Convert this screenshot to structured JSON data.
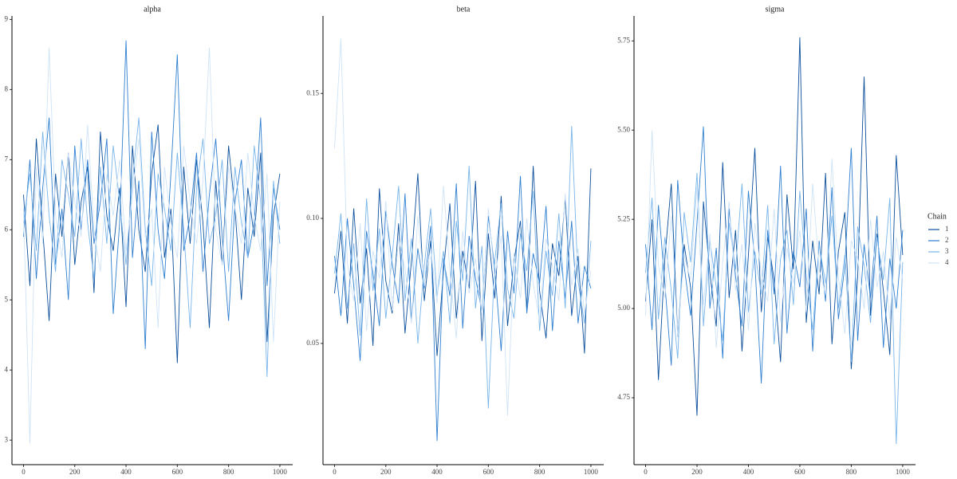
{
  "chart_data": [
    {
      "type": "line",
      "title": "alpha",
      "x": [
        0,
        25,
        50,
        75,
        100,
        125,
        150,
        175,
        200,
        225,
        250,
        275,
        300,
        325,
        350,
        375,
        400,
        425,
        450,
        475,
        500,
        525,
        550,
        575,
        600,
        625,
        650,
        675,
        700,
        725,
        750,
        775,
        800,
        825,
        850,
        875,
        900,
        925,
        950,
        975,
        1000
      ],
      "xlim": [
        -45,
        1050
      ],
      "xticks": [
        0,
        200,
        400,
        600,
        800,
        1000
      ],
      "ylim": [
        2.65,
        9.05
      ],
      "yticks": [
        3,
        4,
        5,
        6,
        7,
        8,
        9
      ],
      "series": [
        {
          "color": "#0b4f9c",
          "values": [
            6.5,
            5.2,
            7.3,
            6.0,
            4.7,
            6.8,
            5.9,
            7.1,
            5.5,
            6.4,
            6.9,
            5.1,
            7.4,
            6.2,
            5.7,
            6.6,
            4.9,
            7.2,
            6.0,
            5.4,
            6.8,
            7.5,
            5.6,
            6.3,
            4.1,
            6.9,
            5.8,
            7.0,
            6.1,
            4.6,
            6.7,
            5.5,
            7.2,
            6.3,
            5.0,
            6.6,
            5.9,
            7.1,
            4.4,
            6.2,
            6.8
          ]
        },
        {
          "color": "#2f7fd0",
          "values": [
            5.9,
            7.0,
            5.3,
            6.6,
            7.6,
            5.5,
            6.3,
            5.0,
            7.2,
            6.0,
            7.0,
            5.8,
            6.4,
            7.3,
            4.8,
            6.1,
            8.7,
            5.6,
            6.7,
            4.3,
            7.4,
            6.0,
            5.3,
            6.8,
            8.5,
            5.7,
            6.2,
            7.1,
            5.4,
            6.5,
            7.3,
            5.9,
            4.7,
            6.4,
            7.0,
            5.6,
            6.1,
            7.6,
            5.2,
            6.6,
            6.0
          ]
        },
        {
          "color": "#79b5ea",
          "values": [
            6.1,
            6.8,
            5.7,
            7.4,
            6.2,
            5.4,
            7.0,
            6.5,
            5.9,
            7.3,
            6.1,
            5.3,
            6.9,
            5.8,
            7.2,
            6.4,
            5.5,
            6.7,
            7.6,
            6.0,
            5.2,
            6.8,
            6.3,
            5.7,
            7.1,
            6.0,
            4.6,
            6.6,
            7.3,
            5.8,
            6.2,
            7.0,
            5.4,
            6.9,
            6.1,
            5.6,
            7.2,
            6.4,
            3.9,
            6.7,
            5.8
          ]
        },
        {
          "color": "#cfe3f7",
          "values": [
            6.3,
            2.95,
            6.9,
            5.8,
            8.6,
            6.2,
            5.6,
            7.1,
            6.4,
            5.9,
            7.5,
            6.0,
            5.4,
            6.8,
            6.2,
            7.0,
            5.7,
            6.5,
            7.3,
            5.9,
            6.3,
            4.6,
            6.9,
            6.1,
            5.6,
            7.2,
            6.4,
            5.8,
            6.7,
            8.6,
            6.0,
            5.5,
            6.9,
            6.3,
            5.8,
            7.1,
            6.2,
            5.7,
            6.8,
            4.4,
            6.4
          ]
        }
      ]
    },
    {
      "type": "line",
      "title": "beta",
      "x": [
        0,
        25,
        50,
        75,
        100,
        125,
        150,
        175,
        200,
        225,
        250,
        275,
        300,
        325,
        350,
        375,
        400,
        425,
        450,
        475,
        500,
        525,
        550,
        575,
        600,
        625,
        650,
        675,
        700,
        725,
        750,
        775,
        800,
        825,
        850,
        875,
        900,
        925,
        950,
        975,
        1000
      ],
      "xlim": [
        -45,
        1050
      ],
      "xticks": [
        0,
        200,
        400,
        600,
        800,
        1000
      ],
      "ylim": [
        0.0015,
        0.181
      ],
      "yticks": [
        0.05,
        {
          "value": 0.1,
          "label": "0.10"
        },
        0.15
      ],
      "series": [
        {
          "color": "#0b4f9c",
          "values": [
            0.07,
            0.095,
            0.058,
            0.104,
            0.066,
            0.088,
            0.049,
            0.112,
            0.075,
            0.062,
            0.098,
            0.054,
            0.083,
            0.118,
            0.067,
            0.091,
            0.045,
            0.079,
            0.106,
            0.06,
            0.087,
            0.072,
            0.115,
            0.051,
            0.094,
            0.068,
            0.109,
            0.057,
            0.083,
            0.099,
            0.064,
            0.121,
            0.071,
            0.052,
            0.09,
            0.077,
            0.108,
            0.061,
            0.085,
            0.046,
            0.12
          ]
        },
        {
          "color": "#2f7fd0",
          "values": [
            0.085,
            0.061,
            0.1,
            0.073,
            0.043,
            0.095,
            0.078,
            0.057,
            0.103,
            0.082,
            0.066,
            0.11,
            0.059,
            0.088,
            0.072,
            0.097,
            0.011,
            0.084,
            0.069,
            0.114,
            0.056,
            0.093,
            0.076,
            0.063,
            0.101,
            0.08,
            0.047,
            0.095,
            0.07,
            0.117,
            0.062,
            0.086,
            0.074,
            0.105,
            0.055,
            0.091,
            0.068,
            0.099,
            0.058,
            0.081,
            0.072
          ]
        },
        {
          "color": "#79b5ea",
          "values": [
            0.078,
            0.102,
            0.064,
            0.09,
            0.053,
            0.108,
            0.071,
            0.096,
            0.06,
            0.085,
            0.113,
            0.067,
            0.092,
            0.05,
            0.081,
            0.104,
            0.069,
            0.087,
            0.058,
            0.099,
            0.075,
            0.121,
            0.064,
            0.089,
            0.024,
            0.083,
            0.106,
            0.072,
            0.06,
            0.094,
            0.079,
            0.111,
            0.055,
            0.087,
            0.069,
            0.102,
            0.064,
            0.137,
            0.075,
            0.058,
            0.091
          ]
        },
        {
          "color": "#cfe3f7",
          "values": [
            0.128,
            0.172,
            0.082,
            0.067,
            0.098,
            0.055,
            0.087,
            0.076,
            0.107,
            0.063,
            0.092,
            0.08,
            0.058,
            0.101,
            0.073,
            0.088,
            0.066,
            0.113,
            0.079,
            0.052,
            0.095,
            0.07,
            0.084,
            0.061,
            0.104,
            0.076,
            0.093,
            0.021,
            0.086,
            0.068,
            0.1,
            0.074,
            0.059,
            0.092,
            0.081,
            0.067,
            0.11,
            0.073,
            0.088,
            0.062,
            0.079
          ]
        }
      ]
    },
    {
      "type": "line",
      "title": "sigma",
      "x": [
        0,
        25,
        50,
        75,
        100,
        125,
        150,
        175,
        200,
        225,
        250,
        275,
        300,
        325,
        350,
        375,
        400,
        425,
        450,
        475,
        500,
        525,
        550,
        575,
        600,
        625,
        650,
        675,
        700,
        725,
        750,
        775,
        800,
        825,
        850,
        875,
        900,
        925,
        950,
        975,
        1000
      ],
      "xlim": [
        -45,
        1050
      ],
      "xticks": [
        0,
        200,
        400,
        600,
        800,
        1000
      ],
      "ylim": [
        4.5625,
        5.82
      ],
      "yticks": [
        4.75,
        {
          "value": 5,
          "label": "5.00"
        },
        5.25,
        {
          "value": 5.5,
          "label": "5.50"
        },
        5.75
      ],
      "legend": "right",
      "legend_title": "Chain",
      "series": [
        {
          "name": "1",
          "color": "#0b4f9c",
          "values": [
            5.02,
            5.25,
            4.8,
            5.14,
            5.35,
            4.92,
            5.18,
            5.06,
            4.7,
            5.3,
            5.1,
            4.95,
            5.41,
            5.03,
            5.22,
            4.88,
            5.15,
            5.45,
            4.99,
            5.2,
            5.08,
            4.85,
            5.32,
            5.11,
            5.76,
            4.96,
            5.19,
            5.04,
            5.38,
            4.9,
            5.16,
            5.27,
            4.83,
            5.09,
            5.65,
            4.98,
            5.21,
            5.05,
            4.87,
            5.43,
            5.15
          ]
        },
        {
          "name": "2",
          "color": "#2f7fd0",
          "values": [
            5.18,
            4.94,
            5.29,
            5.07,
            4.84,
            5.36,
            5.12,
            4.98,
            5.24,
            5.51,
            5.0,
            5.17,
            4.86,
            5.28,
            5.09,
            4.95,
            5.33,
            5.13,
            4.79,
            5.22,
            5.04,
            5.4,
            4.93,
            5.16,
            5.06,
            5.28,
            4.88,
            5.19,
            5.02,
            5.34,
            4.97,
            5.12,
            5.45,
            4.91,
            5.18,
            5.03,
            5.26,
            4.89,
            5.14,
            5.0,
            5.22
          ]
        },
        {
          "name": "3",
          "color": "#79b5ea",
          "values": [
            5.1,
            5.31,
            4.97,
            5.2,
            5.05,
            4.86,
            5.27,
            5.13,
            5.38,
            4.95,
            5.19,
            5.06,
            4.91,
            5.24,
            5.11,
            5.35,
            4.99,
            5.16,
            5.04,
            5.29,
            4.9,
            5.14,
            5.22,
            5.01,
            5.33,
            5.09,
            4.94,
            5.18,
            5.07,
            5.26,
            5.0,
            5.15,
            4.85,
            5.23,
            5.12,
            4.96,
            5.2,
            5.08,
            5.31,
            4.62,
            5.13
          ]
        },
        {
          "name": "4",
          "color": "#cfe3f7",
          "values": [
            4.98,
            5.5,
            5.12,
            5.03,
            5.26,
            4.92,
            5.15,
            5.08,
            5.34,
            5.01,
            5.21,
            4.89,
            5.13,
            5.3,
            5.05,
            5.18,
            4.94,
            5.24,
            5.1,
            5.02,
            5.28,
            4.96,
            5.17,
            5.07,
            5.22,
            4.99,
            5.35,
            5.11,
            5.04,
            5.42,
            5.09,
            4.93,
            5.19,
            5.14,
            5.0,
            5.25,
            5.06,
            5.16,
            4.97,
            5.2,
            5.08
          ]
        }
      ]
    }
  ]
}
